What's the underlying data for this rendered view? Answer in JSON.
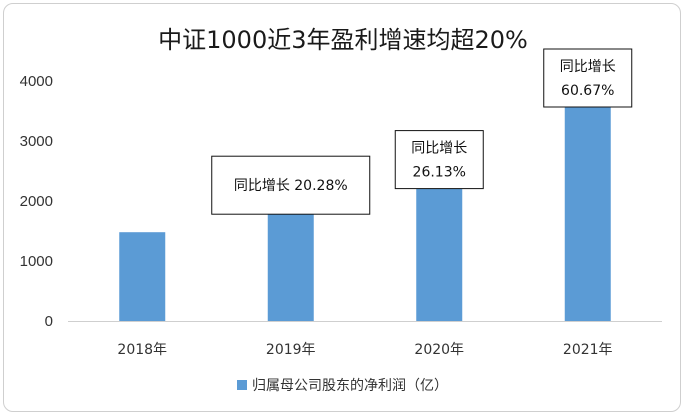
{
  "chart_data": {
    "type": "bar",
    "title": "中证1000近3年盈利增速均超20%",
    "categories": [
      "2018年",
      "2019年",
      "2020年",
      "2021年"
    ],
    "series": [
      {
        "name": "归属母公司股东的净利润（亿）",
        "values": [
          1480,
          1780,
          2240,
          3600
        ]
      }
    ],
    "ylim": [
      0,
      4000
    ],
    "yticks": [
      0,
      1000,
      2000,
      3000,
      4000
    ],
    "grid": false,
    "legend": "bottom",
    "bar_color": "#5b9bd5",
    "annotations": [
      {
        "category": "2019年",
        "lines": [
          "同比增长 20.28%"
        ]
      },
      {
        "category": "2020年",
        "lines": [
          "同比增长",
          "26.13%"
        ]
      },
      {
        "category": "2021年",
        "lines": [
          "同比增长",
          "60.67%"
        ]
      }
    ]
  }
}
